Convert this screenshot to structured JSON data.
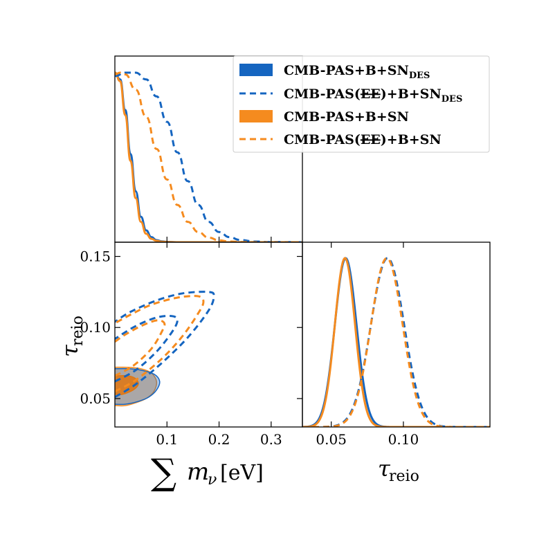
{
  "colors": {
    "blue": "#1565c0",
    "orange": "#f58b1f",
    "frame": "#000000"
  },
  "chart_data": {
    "type": "triangle-plot",
    "legend": {
      "placement": "top-right",
      "entries": [
        {
          "label": "CMB-PAS+B+SN",
          "sub": "DES",
          "strike": "",
          "suffix": "",
          "style": "filled",
          "color": "#1565c0"
        },
        {
          "label": "CMB-PAS(",
          "strike": "EE",
          "suffix": ")+B+SN",
          "sub": "DES",
          "style": "dashed",
          "color": "#1565c0"
        },
        {
          "label": "CMB-PAS+B+SN",
          "sub": "",
          "strike": "",
          "suffix": "",
          "style": "filled",
          "color": "#f58b1f"
        },
        {
          "label": "CMB-PAS(",
          "strike": "EE",
          "suffix": ")+B+SN",
          "sub": "",
          "style": "dashed",
          "color": "#f58b1f"
        }
      ]
    },
    "xlabel_mnu": {
      "sum": "∑",
      "m": "m",
      "nu": "ν",
      "unit": "[eV]"
    },
    "xlabel_tau": {
      "tau": "τ",
      "sub": "reio"
    },
    "ylabel_tau": {
      "tau": "τ",
      "sub": "reio"
    },
    "mnu_range": [
      0.0,
      0.36
    ],
    "tau_range": [
      0.03,
      0.16
    ],
    "mnu_ticks": [
      {
        "v": 0.1,
        "label": "0.1"
      },
      {
        "v": 0.2,
        "label": "0.2"
      },
      {
        "v": 0.3,
        "label": "0.3"
      }
    ],
    "tau_ticks_y": [
      {
        "v": 0.05,
        "label": "0.05"
      },
      {
        "v": 0.1,
        "label": "0.10"
      },
      {
        "v": 0.15,
        "label": "0.15"
      }
    ],
    "tau_ticks_x": [
      {
        "v": 0.05,
        "label": "0.05"
      },
      {
        "v": 0.1,
        "label": "0.10"
      }
    ],
    "mnu_posteriors": [
      {
        "name": "blue-solid",
        "color": "#1565c0",
        "dash": false,
        "x": [
          0.0,
          0.01,
          0.02,
          0.03,
          0.04,
          0.05,
          0.06,
          0.07,
          0.08,
          0.09,
          0.1,
          0.12,
          0.36
        ],
        "y": [
          1.0,
          0.96,
          0.78,
          0.52,
          0.3,
          0.15,
          0.07,
          0.03,
          0.012,
          0.005,
          0.002,
          0.0,
          0.0
        ]
      },
      {
        "name": "orange-solid",
        "color": "#f58b1f",
        "dash": false,
        "x": [
          0.0,
          0.01,
          0.02,
          0.03,
          0.04,
          0.05,
          0.06,
          0.07,
          0.08,
          0.09,
          0.1,
          0.12,
          0.36
        ],
        "y": [
          1.0,
          0.95,
          0.75,
          0.48,
          0.26,
          0.12,
          0.05,
          0.02,
          0.008,
          0.003,
          0.001,
          0.0,
          0.0
        ]
      },
      {
        "name": "blue-dashed",
        "color": "#1565c0",
        "dash": true,
        "x": [
          0.0,
          0.02,
          0.04,
          0.06,
          0.08,
          0.1,
          0.12,
          0.14,
          0.16,
          0.18,
          0.2,
          0.22,
          0.24,
          0.27,
          0.3,
          0.36
        ],
        "y": [
          0.98,
          1.0,
          1.0,
          0.96,
          0.86,
          0.71,
          0.53,
          0.36,
          0.22,
          0.12,
          0.06,
          0.03,
          0.013,
          0.004,
          0.001,
          0.0
        ]
      },
      {
        "name": "orange-dashed",
        "color": "#f58b1f",
        "dash": true,
        "x": [
          0.0,
          0.01,
          0.02,
          0.04,
          0.06,
          0.08,
          0.1,
          0.12,
          0.14,
          0.16,
          0.18,
          0.2,
          0.22,
          0.25,
          0.28,
          0.36
        ],
        "y": [
          0.99,
          1.0,
          0.99,
          0.9,
          0.74,
          0.55,
          0.37,
          0.22,
          0.12,
          0.06,
          0.027,
          0.011,
          0.004,
          0.001,
          0.0,
          0.0
        ]
      }
    ],
    "tau_posteriors": [
      {
        "name": "blue-solid",
        "color": "#1565c0",
        "dash": false,
        "center": 0.06,
        "sigma": 0.0075
      },
      {
        "name": "orange-solid",
        "color": "#f58b1f",
        "dash": false,
        "center": 0.0595,
        "sigma": 0.007
      },
      {
        "name": "blue-dashed",
        "color": "#1565c0",
        "dash": true,
        "center": 0.089,
        "sigma": 0.0115
      },
      {
        "name": "orange-dashed",
        "color": "#f58b1f",
        "dash": true,
        "center": 0.0885,
        "sigma": 0.011
      }
    ],
    "contours_2d": [
      {
        "name": "orange-fill-95",
        "color": "#f58b1f",
        "fill": true,
        "opacity": 0.45,
        "points": [
          [
            0.0,
            0.045
          ],
          [
            0.02,
            0.045
          ],
          [
            0.04,
            0.047
          ],
          [
            0.06,
            0.05
          ],
          [
            0.075,
            0.055
          ],
          [
            0.08,
            0.062
          ],
          [
            0.07,
            0.068
          ],
          [
            0.05,
            0.071
          ],
          [
            0.025,
            0.072
          ],
          [
            0.0,
            0.072
          ]
        ]
      },
      {
        "name": "blue-fill-95",
        "color": "#1565c0",
        "fill": true,
        "opacity": 0.35,
        "points": [
          [
            0.0,
            0.046
          ],
          [
            0.02,
            0.046
          ],
          [
            0.045,
            0.048
          ],
          [
            0.065,
            0.051
          ],
          [
            0.08,
            0.056
          ],
          [
            0.086,
            0.062
          ],
          [
            0.076,
            0.067
          ],
          [
            0.05,
            0.07
          ],
          [
            0.025,
            0.071
          ],
          [
            0.0,
            0.071
          ]
        ]
      },
      {
        "name": "orange-fill-68",
        "color": "#e07610",
        "fill": true,
        "opacity": 0.85,
        "points": [
          [
            0.0,
            0.053
          ],
          [
            0.015,
            0.053
          ],
          [
            0.035,
            0.056
          ],
          [
            0.045,
            0.06
          ],
          [
            0.04,
            0.064
          ],
          [
            0.025,
            0.066
          ],
          [
            0.0,
            0.066
          ]
        ]
      },
      {
        "name": "blue-dashed-95",
        "color": "#1565c0",
        "fill": false,
        "dash": true,
        "points": [
          [
            0.0,
            0.051
          ],
          [
            0.04,
            0.06
          ],
          [
            0.09,
            0.075
          ],
          [
            0.14,
            0.093
          ],
          [
            0.18,
            0.112
          ],
          [
            0.19,
            0.122
          ],
          [
            0.18,
            0.125
          ],
          [
            0.13,
            0.124
          ],
          [
            0.08,
            0.119
          ],
          [
            0.03,
            0.111
          ],
          [
            0.0,
            0.104
          ]
        ]
      },
      {
        "name": "orange-dashed-95",
        "color": "#f58b1f",
        "fill": false,
        "dash": true,
        "points": [
          [
            0.0,
            0.055
          ],
          [
            0.04,
            0.063
          ],
          [
            0.09,
            0.078
          ],
          [
            0.13,
            0.094
          ],
          [
            0.16,
            0.11
          ],
          [
            0.17,
            0.118
          ],
          [
            0.16,
            0.122
          ],
          [
            0.12,
            0.121
          ],
          [
            0.07,
            0.116
          ],
          [
            0.03,
            0.109
          ],
          [
            0.0,
            0.103
          ]
        ]
      },
      {
        "name": "blue-dashed-68",
        "color": "#1565c0",
        "fill": false,
        "dash": true,
        "points": [
          [
            0.0,
            0.062
          ],
          [
            0.04,
            0.07
          ],
          [
            0.08,
            0.083
          ],
          [
            0.11,
            0.097
          ],
          [
            0.12,
            0.105
          ],
          [
            0.11,
            0.108
          ],
          [
            0.08,
            0.107
          ],
          [
            0.04,
            0.101
          ],
          [
            0.0,
            0.092
          ]
        ]
      },
      {
        "name": "orange-dashed-68",
        "color": "#f58b1f",
        "fill": false,
        "dash": true,
        "points": [
          [
            0.0,
            0.066
          ],
          [
            0.035,
            0.073
          ],
          [
            0.07,
            0.085
          ],
          [
            0.09,
            0.097
          ],
          [
            0.095,
            0.103
          ],
          [
            0.08,
            0.105
          ],
          [
            0.05,
            0.101
          ],
          [
            0.02,
            0.095
          ],
          [
            0.0,
            0.09
          ]
        ]
      }
    ]
  }
}
